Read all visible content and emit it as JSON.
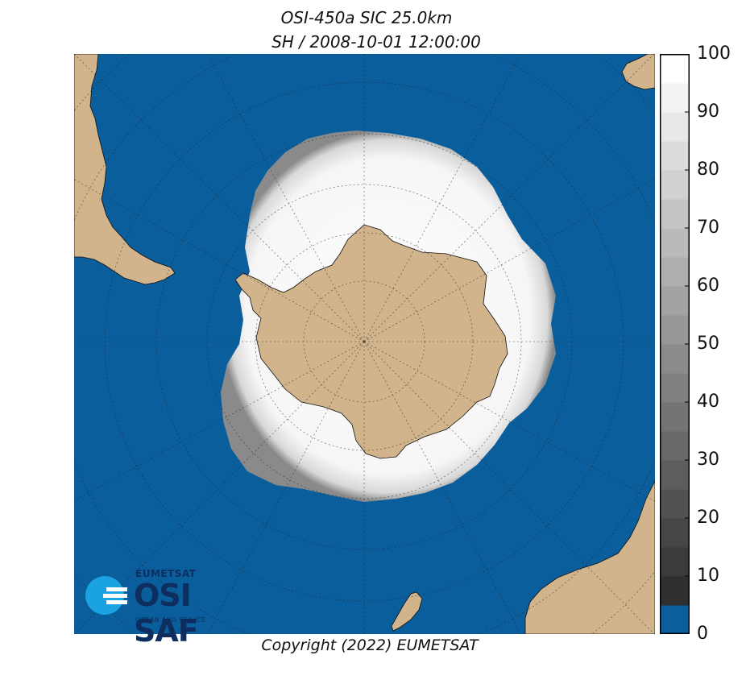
{
  "header": {
    "title_line1": "OSI-450a SIC 25.0km",
    "title_line2": "SH / 2008-10-01 12:00:00"
  },
  "footer": {
    "copyright": "Copyright (2022)  EUMETSAT"
  },
  "logo": {
    "organization": "EUMETSAT",
    "product": "OSI SAF",
    "subtitle": "OCEAN AND SEA ICE"
  },
  "colorbar": {
    "tick_labels": [
      "100",
      "90",
      "80",
      "70",
      "60",
      "50",
      "40",
      "30",
      "20",
      "10",
      "0"
    ],
    "range": [
      0,
      100
    ],
    "step": 5,
    "ocean_color": "#0a5e9c",
    "low_ice_color": "#2f2f2f",
    "high_ice_color": "#ffffff"
  },
  "map": {
    "projection": "south polar stereographic",
    "ocean_color": "#0a5e9c",
    "land_color": "#d2b48c",
    "graticule": "dotted",
    "region": "Southern Hemisphere"
  }
}
